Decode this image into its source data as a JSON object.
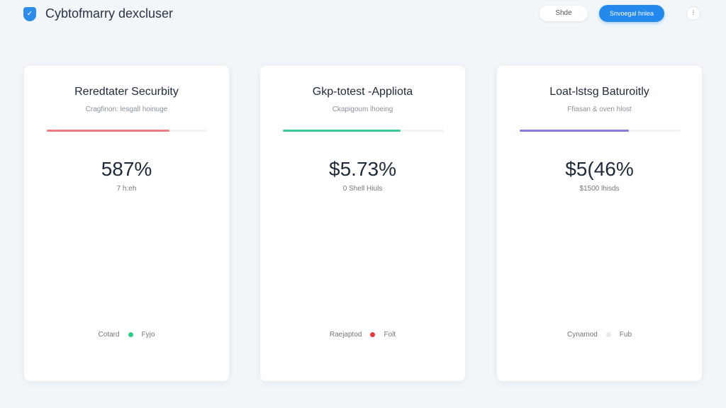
{
  "header": {
    "title": "Cybtofmarry dexcluser",
    "share_label": "Shde",
    "primary_label": "Snvoegal hnlea",
    "more_label": "⁝",
    "accent": "#2389ec"
  },
  "cards": [
    {
      "title": "Reredtater Securbity",
      "subtitle": "Cragfinon: lesgall hoinuge",
      "progress": 76,
      "color": "#ef7b80",
      "value": "587%",
      "note": "7 h:eh",
      "legend_left": "Cotard",
      "legend_right": "Fyjo",
      "dot_color": "#2ecc8a"
    },
    {
      "title": "Gkp-totest -Appliota",
      "subtitle": "Ckapigoum lhoeing",
      "progress": 73,
      "color": "#3cc79a",
      "value": "$5.73%",
      "note": "0 Shell Hiuls",
      "legend_left": "Raejaptod",
      "legend_right": "Folt",
      "dot_color": "#e03a3a"
    },
    {
      "title": "Loat-lstsg Baturoitly",
      "subtitle": "Ffiasan & oven hlost",
      "progress": 68,
      "color": "#8a78dd",
      "value": "$5(46%",
      "note": "$1500 lhisds",
      "legend_left": "Cynamod",
      "legend_right": "Fub",
      "dot_color": "#e8e9ec"
    }
  ]
}
